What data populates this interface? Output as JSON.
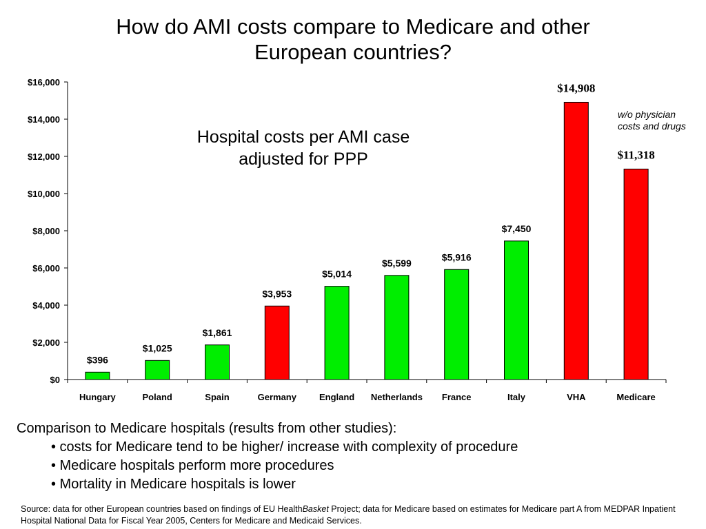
{
  "title_line1": "How do AMI costs compare to Medicare and other",
  "title_line2": "European countries?",
  "colors": {
    "green": "#00ee00",
    "red": "#ff0000"
  },
  "chart_data": {
    "type": "bar",
    "subtitle_line1": "Hospital costs per AMI case",
    "subtitle_line2": "adjusted for PPP",
    "categories": [
      "Hungary",
      "Poland",
      "Spain",
      "Germany",
      "England",
      "Netherlands",
      "France",
      "Italy",
      "VHA",
      "Medicare"
    ],
    "values": [
      396,
      1025,
      1861,
      3953,
      5014,
      5599,
      5916,
      7450,
      14908,
      11318
    ],
    "value_labels": [
      "$396",
      "$1,025",
      "$1,861",
      "$3,953",
      "$5,014",
      "$5,599",
      "$5,916",
      "$7,450",
      "$14,908",
      "$11,318"
    ],
    "bar_colors": [
      "green",
      "green",
      "green",
      "red",
      "green",
      "green",
      "green",
      "green",
      "red",
      "red"
    ],
    "serif_label_categories": [
      "VHA",
      "Medicare"
    ],
    "ylim": [
      0,
      16000
    ],
    "yticks": [
      0,
      2000,
      4000,
      6000,
      8000,
      10000,
      12000,
      14000,
      16000
    ],
    "ytick_labels": [
      "$0",
      "$2,000",
      "$4,000",
      "$6,000",
      "$8,000",
      "$10,000",
      "$12,000",
      "$14,000",
      "$16,000"
    ],
    "annotation": "w/o physician costs and drugs",
    "grid": false,
    "xlabel": "",
    "ylabel": ""
  },
  "comparison": {
    "heading": "Comparison to Medicare hospitals (results from other studies):",
    "bullets": [
      "• costs for Medicare tend to be higher/ increase with complexity of procedure",
      "• Medicare hospitals perform more procedures",
      "• Mortality in Medicare hospitals is lower"
    ]
  },
  "source": {
    "part1": "Source: data for other European countries based on findings of EU Health",
    "part2": "Basket",
    "part3": " Project; data for Medicare based on estimates for Medicare part A from MEDPAR Inpatient Hospital National Data for Fiscal Year 2005, Centers for Medicare and Medicaid Services."
  }
}
